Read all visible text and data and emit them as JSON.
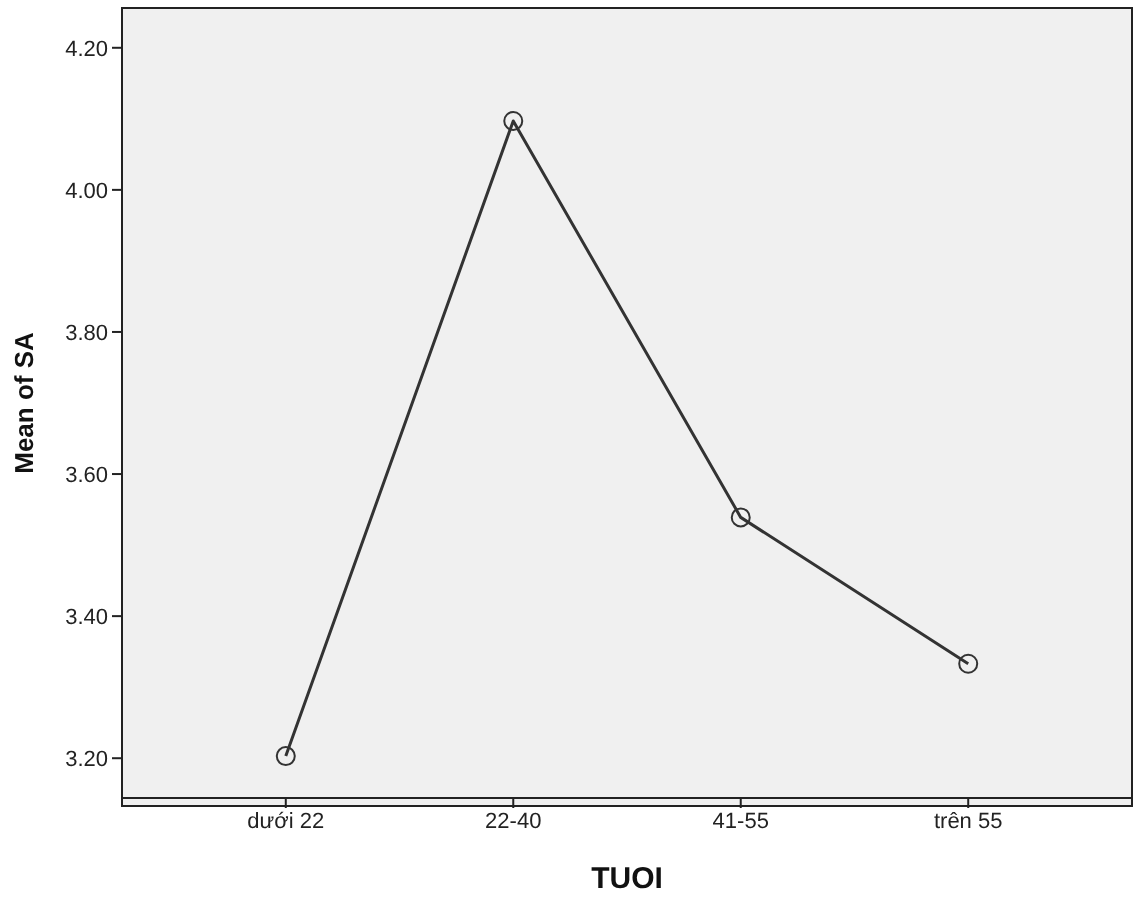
{
  "chart_data": {
    "type": "line",
    "xlabel": "TUOI",
    "ylabel": "Mean of SA",
    "categories": [
      "dưới 22",
      "22-40",
      "41-55",
      "trên 55"
    ],
    "series": [
      {
        "color": "#333333",
        "values": [
          3.203,
          4.097,
          3.539,
          3.333
        ]
      }
    ],
    "ylim": [
      3.144,
      4.256
    ],
    "yticks": [
      {
        "value": 3.2,
        "label": "3.20"
      },
      {
        "value": 3.4,
        "label": "3.40"
      },
      {
        "value": 3.6,
        "label": "3.60"
      },
      {
        "value": 3.8,
        "label": "3.80"
      },
      {
        "value": 4.0,
        "label": "4.00"
      },
      {
        "value": 4.2,
        "label": "4.20"
      }
    ],
    "marker": "circle",
    "line_style": "solid"
  }
}
